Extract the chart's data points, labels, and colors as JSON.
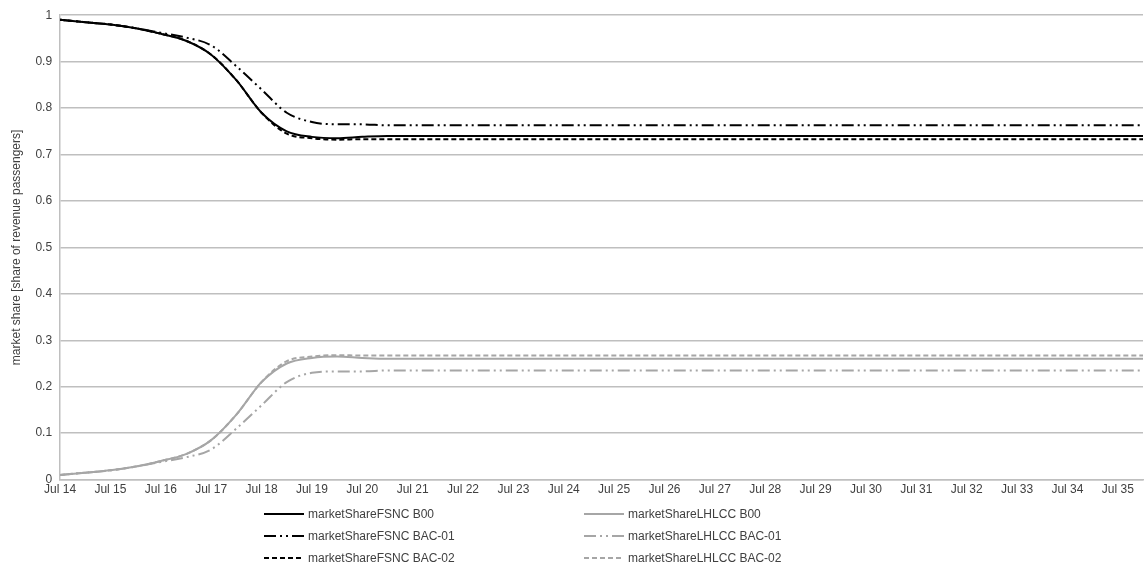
{
  "chart_data": {
    "type": "line",
    "ylabel": "market share [share of revenue passengers]",
    "categories": [
      "Jul 14",
      null,
      "Jul 15",
      null,
      "Jul 16",
      null,
      "Jul 17",
      null,
      "Jul 18",
      null,
      "Jul 19",
      null,
      "Jul 20",
      null,
      "Jul 21",
      null,
      "Jul 22",
      null,
      "Jul 23",
      null,
      "Jul 24",
      null,
      "Jul 25",
      null,
      "Jul 26",
      null,
      "Jul 27",
      null,
      "Jul 28",
      null,
      "Jul 29",
      null,
      "Jul 30",
      null,
      "Jul 31",
      null,
      "Jul 32",
      null,
      "Jul 33",
      null,
      "Jul 34",
      null,
      "Jul 35",
      null
    ],
    "ylim": [
      0,
      1
    ],
    "yticks": [
      0,
      0.1,
      0.2,
      0.3,
      0.4,
      0.5,
      0.6,
      0.7,
      0.8,
      0.9,
      1
    ],
    "grid": "y",
    "legend": "bottom",
    "marker": "none",
    "series": [
      {
        "name": "marketShareFSNC B00",
        "color": "#000000",
        "line_style": "solid",
        "values": [
          0.99,
          0.985,
          0.98,
          0.972,
          0.96,
          0.945,
          0.915,
          0.86,
          0.79,
          0.75,
          0.738,
          0.735,
          0.738,
          0.74,
          0.74,
          0.74,
          0.74,
          0.74,
          0.74,
          0.74,
          0.74,
          0.74,
          0.74,
          0.74,
          0.74,
          0.74,
          0.74,
          0.74,
          0.74,
          0.74,
          0.74,
          0.74,
          0.74,
          0.74,
          0.74,
          0.74,
          0.74,
          0.74,
          0.74,
          0.74,
          0.74,
          0.74,
          0.74,
          0.74
        ]
      },
      {
        "name": "marketShareLHLCC B00",
        "color": "#a6a6a6",
        "line_style": "solid",
        "values": [
          0.01,
          0.015,
          0.02,
          0.028,
          0.04,
          0.055,
          0.085,
          0.14,
          0.21,
          0.25,
          0.262,
          0.265,
          0.262,
          0.26,
          0.26,
          0.26,
          0.26,
          0.26,
          0.26,
          0.26,
          0.26,
          0.26,
          0.26,
          0.26,
          0.26,
          0.26,
          0.26,
          0.26,
          0.26,
          0.26,
          0.26,
          0.26,
          0.26,
          0.26,
          0.26,
          0.26,
          0.26,
          0.26,
          0.26,
          0.26,
          0.26,
          0.26,
          0.26,
          0.26
        ]
      },
      {
        "name": "marketShareFSNC BAC-01",
        "color": "#000000",
        "line_style": "dashdotdot",
        "values": [
          0.99,
          0.985,
          0.98,
          0.972,
          0.962,
          0.952,
          0.935,
          0.89,
          0.84,
          0.79,
          0.77,
          0.765,
          0.765,
          0.763,
          0.763,
          0.763,
          0.763,
          0.763,
          0.763,
          0.763,
          0.763,
          0.763,
          0.763,
          0.763,
          0.763,
          0.763,
          0.763,
          0.763,
          0.763,
          0.763,
          0.763,
          0.763,
          0.763,
          0.763,
          0.763,
          0.763,
          0.763,
          0.763,
          0.763,
          0.763,
          0.763,
          0.763,
          0.763,
          0.763
        ]
      },
      {
        "name": "marketShareLHLCC BAC-01",
        "color": "#a6a6a6",
        "line_style": "dashdotdot",
        "values": [
          0.01,
          0.015,
          0.02,
          0.028,
          0.038,
          0.048,
          0.065,
          0.11,
          0.16,
          0.21,
          0.23,
          0.233,
          0.233,
          0.235,
          0.235,
          0.235,
          0.235,
          0.235,
          0.235,
          0.235,
          0.235,
          0.235,
          0.235,
          0.235,
          0.235,
          0.235,
          0.235,
          0.235,
          0.235,
          0.235,
          0.235,
          0.235,
          0.235,
          0.235,
          0.235,
          0.235,
          0.235,
          0.235,
          0.235,
          0.235,
          0.235,
          0.235,
          0.235,
          0.235
        ]
      },
      {
        "name": "marketShareFSNC BAC-02",
        "color": "#000000",
        "line_style": "dashed",
        "values": [
          0.99,
          0.985,
          0.98,
          0.972,
          0.96,
          0.945,
          0.915,
          0.86,
          0.79,
          0.745,
          0.735,
          0.732,
          0.733,
          0.733,
          0.733,
          0.733,
          0.733,
          0.733,
          0.733,
          0.733,
          0.733,
          0.733,
          0.733,
          0.733,
          0.733,
          0.733,
          0.733,
          0.733,
          0.733,
          0.733,
          0.733,
          0.733,
          0.733,
          0.733,
          0.733,
          0.733,
          0.733,
          0.733,
          0.733,
          0.733,
          0.733,
          0.733,
          0.733,
          0.733
        ]
      },
      {
        "name": "marketShareLHLCC BAC-02",
        "color": "#a6a6a6",
        "line_style": "dashed",
        "values": [
          0.01,
          0.015,
          0.02,
          0.028,
          0.04,
          0.055,
          0.085,
          0.14,
          0.21,
          0.255,
          0.265,
          0.268,
          0.267,
          0.267,
          0.267,
          0.267,
          0.267,
          0.267,
          0.267,
          0.267,
          0.267,
          0.267,
          0.267,
          0.267,
          0.267,
          0.267,
          0.267,
          0.267,
          0.267,
          0.267,
          0.267,
          0.267,
          0.267,
          0.267,
          0.267,
          0.267,
          0.267,
          0.267,
          0.267,
          0.267,
          0.267,
          0.267,
          0.267,
          0.267
        ]
      }
    ]
  }
}
